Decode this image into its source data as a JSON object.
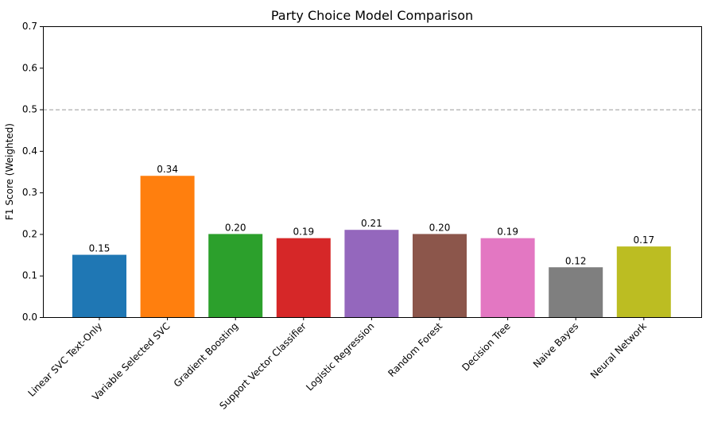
{
  "chart_data": {
    "type": "bar",
    "title": "Party Choice Model Comparison",
    "xlabel": "",
    "ylabel": "F1 Score (Weighted)",
    "ylim": [
      0,
      0.7
    ],
    "yticks": [
      "0.0",
      "0.1",
      "0.2",
      "0.3",
      "0.4",
      "0.5",
      "0.6",
      "0.7"
    ],
    "reference_line": {
      "y": 0.5,
      "style": "dashed",
      "color": "#999999"
    },
    "grid": false,
    "categories": [
      "Linear SVC Text-Only",
      "Variable Selected SVC",
      "Gradient Boosting",
      "Support Vector Classifier",
      "Logistic Regression",
      "Random Forest",
      "Decision Tree",
      "Naive Bayes",
      "Neural Network"
    ],
    "values": [
      0.15,
      0.34,
      0.2,
      0.19,
      0.21,
      0.2,
      0.19,
      0.12,
      0.17
    ],
    "value_labels": [
      "0.15",
      "0.34",
      "0.20",
      "0.19",
      "0.21",
      "0.20",
      "0.19",
      "0.12",
      "0.17"
    ],
    "colors": [
      "#1f77b4",
      "#ff7f0e",
      "#2ca02c",
      "#d62728",
      "#9467bd",
      "#8c564b",
      "#e377c2",
      "#7f7f7f",
      "#bcbd22"
    ]
  }
}
